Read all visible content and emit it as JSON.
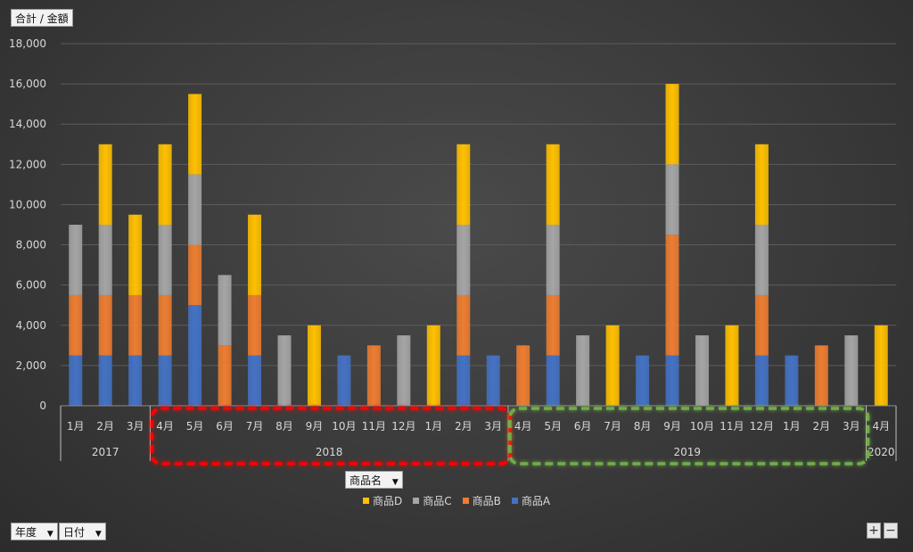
{
  "value_field_label": "合計 / 金額",
  "legend_field_label": "商品名",
  "row_fields": [
    {
      "label": "年度"
    },
    {
      "label": "日付"
    }
  ],
  "zoom": {
    "plus": "+",
    "minus": "−"
  },
  "colors": {
    "商品A": "#4472c4",
    "商品B": "#ed7d31",
    "商品C": "#a5a5a5",
    "商品D": "#ffc000",
    "red_highlight": "#ff0000",
    "green_highlight": "#70ad47"
  },
  "chart_data": {
    "type": "bar",
    "stacked": true,
    "ylim": [
      0,
      18000
    ],
    "yticks": [
      0,
      2000,
      4000,
      6000,
      8000,
      10000,
      12000,
      14000,
      16000,
      18000
    ],
    "ytick_labels": [
      "0",
      "2,000",
      "4,000",
      "6,000",
      "8,000",
      "10,000",
      "12,000",
      "14,000",
      "16,000",
      "18,000"
    ],
    "grid": true,
    "legend_position": "bottom",
    "legend": [
      "商品D",
      "商品C",
      "商品B",
      "商品A"
    ],
    "categories": [
      "1月",
      "2月",
      "3月",
      "4月",
      "5月",
      "6月",
      "7月",
      "8月",
      "9月",
      "10月",
      "11月",
      "12月",
      "1月",
      "2月",
      "3月",
      "4月",
      "5月",
      "6月",
      "7月",
      "8月",
      "9月",
      "10月",
      "11月",
      "12月",
      "1月",
      "2月",
      "3月",
      "4月"
    ],
    "year_groups": [
      {
        "label": "2017",
        "count": 3
      },
      {
        "label": "2018",
        "count": 12
      },
      {
        "label": "2019",
        "count": 12
      },
      {
        "label": "2020",
        "count": 1
      }
    ],
    "series": [
      {
        "name": "商品A",
        "values": [
          2500,
          2500,
          2500,
          2500,
          5000,
          0,
          2500,
          0,
          0,
          2500,
          0,
          0,
          0,
          2500,
          2500,
          0,
          2500,
          0,
          0,
          2500,
          2500,
          0,
          0,
          2500,
          2500,
          0,
          0,
          0
        ]
      },
      {
        "name": "商品B",
        "values": [
          3000,
          3000,
          3000,
          3000,
          3000,
          3000,
          3000,
          0,
          0,
          0,
          3000,
          0,
          0,
          3000,
          0,
          3000,
          3000,
          0,
          0,
          0,
          6000,
          0,
          0,
          3000,
          0,
          3000,
          0,
          0
        ]
      },
      {
        "name": "商品C",
        "values": [
          3500,
          3500,
          0,
          3500,
          3500,
          3500,
          0,
          3500,
          0,
          0,
          0,
          3500,
          0,
          3500,
          0,
          0,
          3500,
          3500,
          0,
          0,
          3500,
          3500,
          0,
          3500,
          0,
          0,
          3500,
          0
        ]
      },
      {
        "name": "商品D",
        "values": [
          0,
          4000,
          4000,
          4000,
          4000,
          0,
          4000,
          0,
          4000,
          0,
          0,
          0,
          4000,
          4000,
          0,
          0,
          4000,
          0,
          4000,
          0,
          4000,
          0,
          4000,
          4000,
          0,
          0,
          0,
          4000
        ]
      }
    ],
    "highlights": [
      {
        "color": "red",
        "from_index": 3,
        "to_index": 14
      },
      {
        "color": "green",
        "from_index": 15,
        "to_index": 26
      }
    ]
  }
}
